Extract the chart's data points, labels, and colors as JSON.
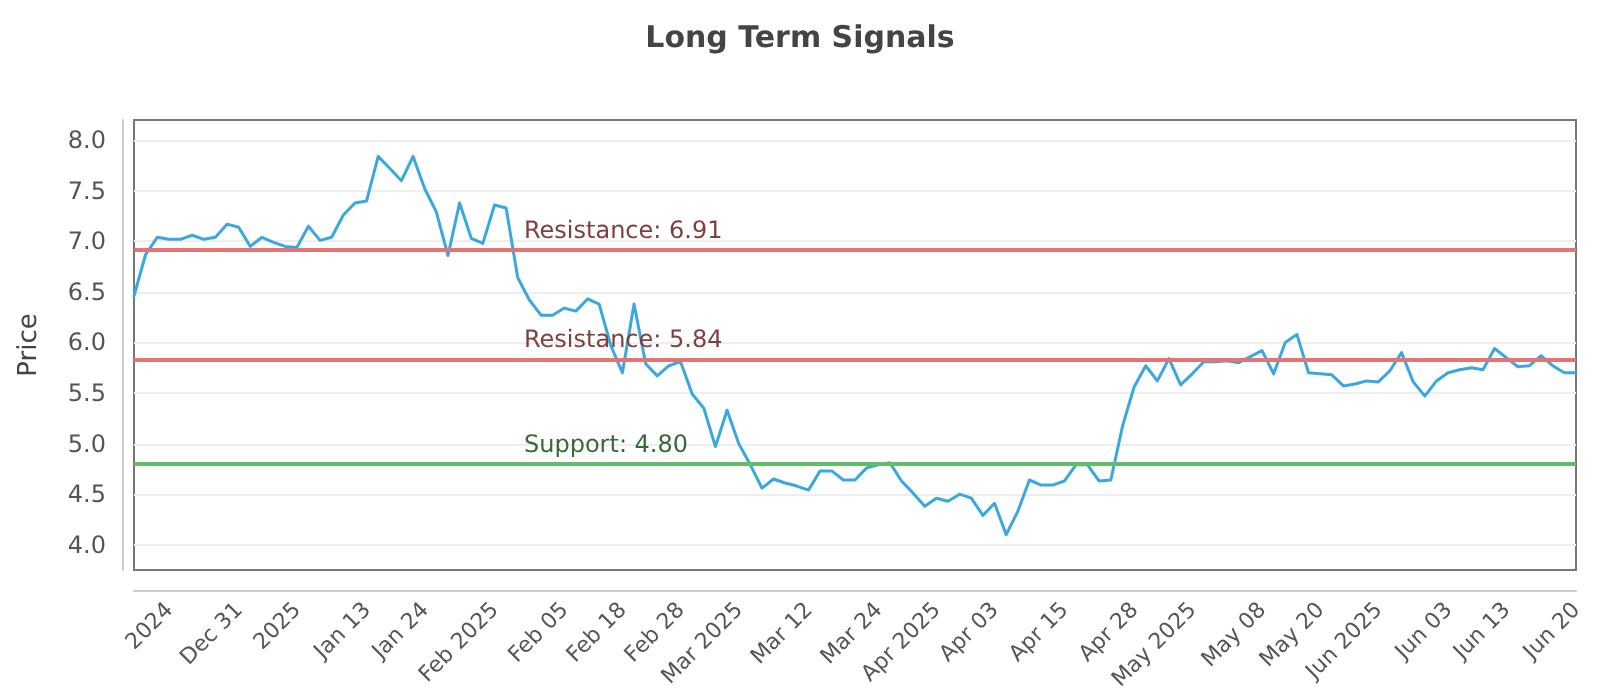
{
  "chart_data": {
    "type": "line",
    "title": "Long Term Signals",
    "ylabel": "Price",
    "categories": [
      null,
      null,
      null,
      "2024",
      null,
      null,
      null,
      null,
      null,
      "Dec 31",
      null,
      null,
      null,
      null,
      "2025",
      null,
      null,
      null,
      null,
      null,
      "Jan 13",
      null,
      null,
      null,
      null,
      "Jan 24",
      null,
      null,
      null,
      null,
      null,
      "Feb 2025",
      null,
      null,
      null,
      null,
      null,
      "Feb 05",
      null,
      null,
      null,
      null,
      "Feb 18",
      null,
      null,
      null,
      null,
      "Feb 28",
      null,
      null,
      null,
      null,
      "Mar 2025",
      null,
      null,
      null,
      null,
      null,
      "Mar 12",
      null,
      null,
      null,
      null,
      null,
      "Mar 24",
      null,
      null,
      null,
      null,
      "Apr 2025",
      null,
      null,
      null,
      null,
      "Apr 03",
      null,
      null,
      null,
      null,
      null,
      "Apr 15",
      null,
      null,
      null,
      null,
      null,
      "Apr 28",
      null,
      null,
      null,
      null,
      "May 2025",
      null,
      null,
      null,
      null,
      null,
      "May 08",
      null,
      null,
      null,
      null,
      "May 20",
      null,
      null,
      null,
      null,
      "Jun 2025",
      null,
      null,
      null,
      null,
      null,
      "Jun 03",
      null,
      null,
      null,
      null,
      "Jun 13",
      null,
      null,
      null,
      null,
      null,
      "Jun 20"
    ],
    "series": [
      {
        "color": "#3aa8e0",
        "values": [
          6.46,
          6.87,
          7.04,
          7.02,
          7.02,
          7.06,
          7.02,
          7.04,
          7.17,
          7.14,
          6.95,
          7.04,
          6.99,
          6.95,
          6.94,
          7.15,
          7.01,
          7.04,
          7.26,
          7.38,
          7.4,
          7.84,
          7.72,
          7.6,
          7.84,
          7.52,
          7.29,
          6.86,
          7.38,
          7.03,
          6.98,
          7.36,
          7.33,
          6.64,
          6.42,
          6.27,
          6.27,
          6.34,
          6.31,
          6.43,
          6.38,
          5.97,
          5.7,
          6.38,
          5.79,
          5.67,
          5.77,
          5.81,
          5.49,
          5.35,
          4.97,
          5.33,
          5.0,
          4.79,
          4.56,
          4.65,
          4.61,
          4.58,
          4.54,
          4.73,
          4.73,
          4.64,
          4.64,
          4.76,
          4.79,
          4.81,
          4.63,
          4.51,
          4.38,
          4.46,
          4.43,
          4.5,
          4.46,
          4.29,
          4.41,
          4.1,
          4.33,
          4.64,
          4.59,
          4.59,
          4.63,
          4.79,
          4.79,
          4.63,
          4.64,
          5.17,
          5.56,
          5.77,
          5.62,
          5.84,
          5.58,
          5.69,
          5.81,
          5.81,
          5.82,
          5.8,
          5.86,
          5.92,
          5.69,
          6.0,
          6.08,
          5.7,
          5.69,
          5.68,
          5.57,
          5.59,
          5.62,
          5.61,
          5.72,
          5.9,
          5.61,
          5.47,
          5.62,
          5.7,
          5.73,
          5.75,
          5.73,
          5.94,
          5.85,
          5.76,
          5.77,
          5.87,
          5.77,
          5.7,
          5.7
        ]
      }
    ],
    "ylim": [
      3.75,
      8.2
    ],
    "yticks": [
      {
        "value": 4,
        "label": "4.0"
      },
      {
        "value": 4.5,
        "label": "4.5"
      },
      {
        "value": 5,
        "label": "5.0"
      },
      {
        "value": 5.5,
        "label": "5.5"
      },
      {
        "value": 6,
        "label": "6.0"
      },
      {
        "value": 6.5,
        "label": "6.5"
      },
      {
        "value": 7,
        "label": "7.0"
      },
      {
        "value": 7.5,
        "label": "7.5"
      },
      {
        "value": 8,
        "label": "8.0"
      }
    ],
    "ref_lines": [
      {
        "axis": "y",
        "value": 6.91,
        "label": "Resistance: 6.91",
        "color": "#e57373"
      },
      {
        "axis": "y",
        "value": 5.84,
        "label": "Resistance: 5.84",
        "color": "#e57373"
      },
      {
        "axis": "y",
        "value": 4.8,
        "label": "Support: 4.80",
        "color": "#66bb6a"
      }
    ],
    "grid": "y",
    "marker": "none",
    "line_style": "solid"
  }
}
